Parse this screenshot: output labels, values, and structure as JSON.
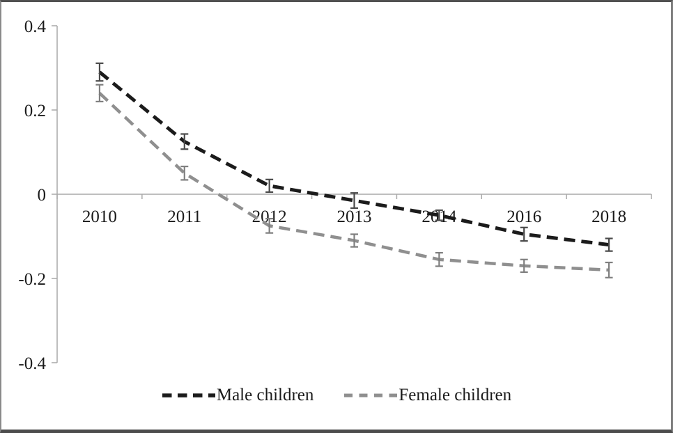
{
  "chart_data": {
    "type": "line",
    "title": "",
    "xlabel": "",
    "ylabel": "",
    "categories": [
      "2010",
      "2011",
      "2012",
      "2013",
      "2014",
      "2016",
      "2018"
    ],
    "series": [
      {
        "name": "Male children",
        "color": "#1b1b1b",
        "error_color": "#4a4a4a",
        "line_style": "dashed",
        "line_width": 5,
        "values": [
          0.29,
          0.125,
          0.02,
          -0.015,
          -0.05,
          -0.095,
          -0.12
        ],
        "error_margins": [
          0.021,
          0.018,
          0.015,
          0.018,
          0.012,
          0.016,
          0.015
        ]
      },
      {
        "name": "Female children",
        "color": "#8f8f8f",
        "error_color": "#7f7f7f",
        "line_style": "dashed",
        "line_width": 4.5,
        "values": [
          0.24,
          0.05,
          -0.075,
          -0.11,
          -0.155,
          -0.17,
          -0.18
        ],
        "error_margins": [
          0.02,
          0.016,
          0.017,
          0.015,
          0.016,
          0.015,
          0.018
        ]
      }
    ],
    "ylim": [
      -0.4,
      0.4
    ],
    "ytick_labels": [
      "0.4",
      "0.2",
      "0",
      "-0.2",
      "-0.4"
    ],
    "ytick_values": [
      0.4,
      0.2,
      0,
      -0.2,
      -0.4
    ],
    "grid": false,
    "legend_position": "bottom",
    "axis_color": "#a9a9a9",
    "text_color": "#1a1a1a"
  }
}
